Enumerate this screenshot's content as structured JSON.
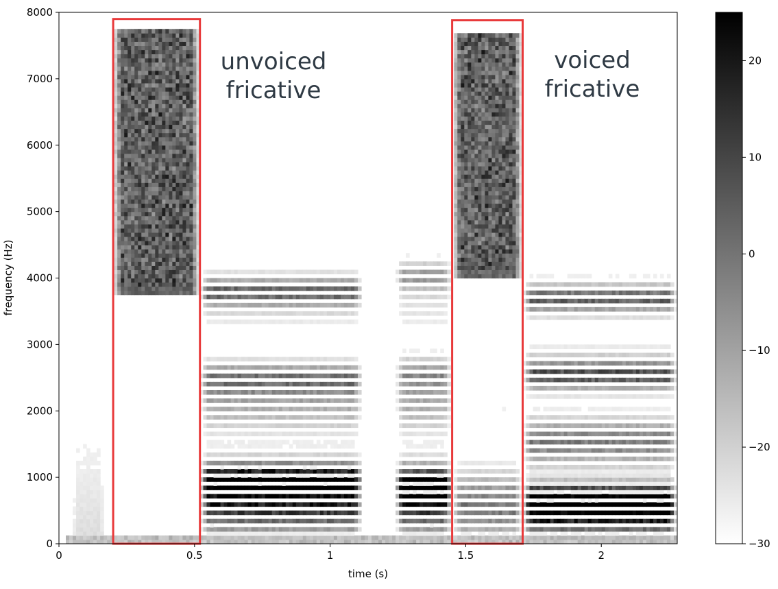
{
  "chart_data": {
    "type": "heatmap",
    "xlabel": "time (s)",
    "ylabel": "frequency (Hz)",
    "xlim": [
      0,
      2.28
    ],
    "ylim": [
      0,
      8000
    ],
    "x_ticks": [
      {
        "value": 0,
        "label": "0"
      },
      {
        "value": 0.5,
        "label": "0.5"
      },
      {
        "value": 1,
        "label": "1"
      },
      {
        "value": 1.5,
        "label": "1.5"
      },
      {
        "value": 2,
        "label": "2"
      }
    ],
    "y_ticks": [
      {
        "value": 0,
        "label": "0"
      },
      {
        "value": 1000,
        "label": "1000"
      },
      {
        "value": 2000,
        "label": "2000"
      },
      {
        "value": 3000,
        "label": "3000"
      },
      {
        "value": 4000,
        "label": "4000"
      },
      {
        "value": 5000,
        "label": "5000"
      },
      {
        "value": 6000,
        "label": "6000"
      },
      {
        "value": 7000,
        "label": "7000"
      },
      {
        "value": 8000,
        "label": "8000"
      }
    ],
    "colorbar": {
      "colormap": "gray_r",
      "range": [
        -30,
        25
      ],
      "ticks": [
        {
          "value": 20,
          "label": "20"
        },
        {
          "value": 10,
          "label": "10"
        },
        {
          "value": 0,
          "label": "0"
        },
        {
          "value": -10,
          "label": "−10"
        },
        {
          "value": -20,
          "label": "−20"
        },
        {
          "value": -30,
          "label": "−30"
        }
      ]
    },
    "annotations": [
      {
        "lines": [
          "unvoiced",
          "fricative"
        ],
        "box_time": [
          0.2,
          0.52
        ],
        "box_freq": [
          0,
          7900
        ],
        "color": "#e8393a"
      },
      {
        "lines": [
          "voiced",
          "fricative"
        ],
        "box_time": [
          1.45,
          1.71
        ],
        "box_freq": [
          0,
          7880
        ],
        "color": "#e8393a"
      }
    ],
    "segments": [
      {
        "time": [
          0.04,
          0.18
        ],
        "kind": "voiced",
        "f0": 125,
        "top": 4800
      },
      {
        "time": [
          0.2,
          0.52
        ],
        "kind": "unvoiced_fricative",
        "noise_floor": 3900,
        "top": 7750
      },
      {
        "time": [
          0.52,
          1.12
        ],
        "kind": "voiced",
        "f0": 120,
        "top": 4200,
        "formants": [
          1050,
          2550,
          3800
        ]
      },
      {
        "time": [
          1.24,
          1.45
        ],
        "kind": "voiced",
        "f0": 120,
        "top": 5100,
        "formants": [
          900,
          2650,
          4100
        ]
      },
      {
        "time": [
          1.45,
          1.71
        ],
        "kind": "voiced_fricative",
        "f0": 120,
        "noise_floor": 4100,
        "top": 7700
      },
      {
        "time": [
          1.71,
          2.28
        ],
        "kind": "voiced",
        "f0": 118,
        "top": 4400,
        "formants": [
          850,
          2500,
          3700
        ]
      }
    ]
  }
}
